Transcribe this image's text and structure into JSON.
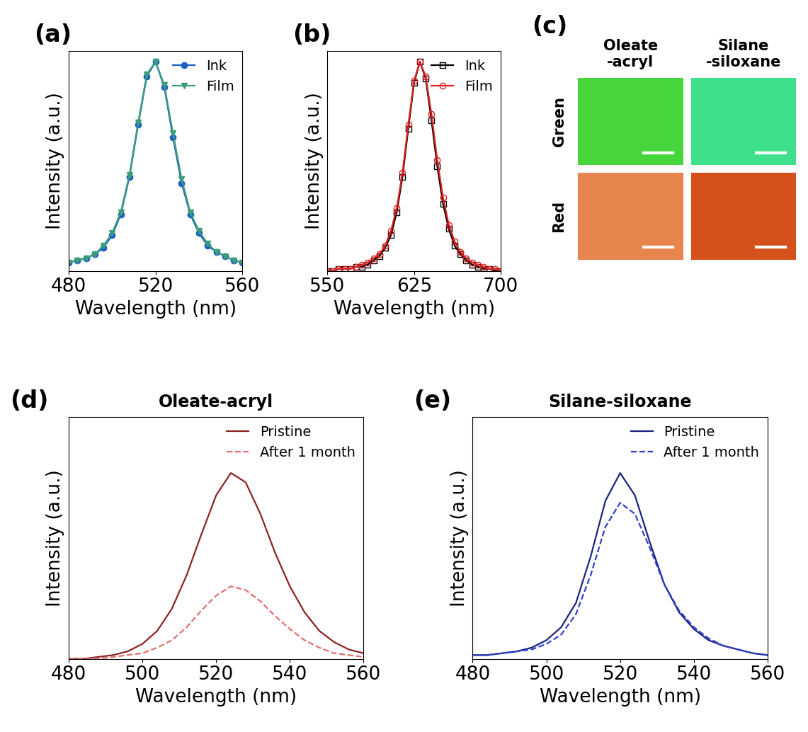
{
  "chart_data": [
    {
      "type": "line",
      "panel": "(a)",
      "x_label": "Wavelength (nm)",
      "y_label": "Intensity (a.u.)",
      "xlim": [
        480,
        560
      ],
      "xticks": [
        480,
        520,
        560
      ],
      "ylim": [
        0,
        1.05
      ],
      "yticks": [],
      "tick_labels": "x",
      "legend": "upper right",
      "x": [
        480,
        484,
        488,
        492,
        496,
        500,
        504,
        508,
        512,
        516,
        520,
        524,
        528,
        532,
        536,
        540,
        544,
        548,
        552,
        556,
        560
      ],
      "series": [
        {
          "name": "Ink",
          "color": "#1f5fc8",
          "marker": "circle",
          "line_style": "solid",
          "values": [
            0.04,
            0.05,
            0.06,
            0.08,
            0.11,
            0.17,
            0.27,
            0.45,
            0.7,
            0.93,
            1.0,
            0.88,
            0.64,
            0.42,
            0.27,
            0.18,
            0.12,
            0.09,
            0.07,
            0.05,
            0.04
          ]
        },
        {
          "name": "Film",
          "color": "#3a9e7a",
          "marker": "triangle_down",
          "line_style": "solid",
          "values": [
            0.04,
            0.05,
            0.06,
            0.08,
            0.12,
            0.18,
            0.28,
            0.46,
            0.71,
            0.94,
            1.0,
            0.89,
            0.66,
            0.44,
            0.28,
            0.19,
            0.13,
            0.09,
            0.07,
            0.05,
            0.04
          ]
        }
      ]
    },
    {
      "type": "line",
      "panel": "(b)",
      "x_label": "Wavelength (nm)",
      "y_label": "Intensity (a.u.)",
      "xlim": [
        550,
        700
      ],
      "xticks": [
        550,
        625,
        700
      ],
      "ylim": [
        0,
        1.05
      ],
      "yticks": [],
      "tick_labels": "x",
      "legend": "upper right",
      "x": [
        550,
        555,
        560,
        565,
        570,
        575,
        580,
        585,
        590,
        595,
        600,
        605,
        610,
        615,
        620,
        625,
        630,
        635,
        640,
        645,
        650,
        655,
        660,
        665,
        670,
        675,
        680,
        685,
        690,
        695,
        700
      ],
      "series": [
        {
          "name": "Ink",
          "color": "#000000",
          "marker": "open_square",
          "line_style": "solid",
          "values": [
            0.0,
            0.0,
            0.01,
            0.01,
            0.01,
            0.02,
            0.02,
            0.03,
            0.05,
            0.07,
            0.11,
            0.17,
            0.28,
            0.45,
            0.68,
            0.9,
            1.0,
            0.92,
            0.72,
            0.5,
            0.32,
            0.2,
            0.12,
            0.08,
            0.05,
            0.03,
            0.02,
            0.01,
            0.01,
            0.0,
            0.0
          ]
        },
        {
          "name": "Film",
          "color": "#e02020",
          "marker": "open_circle",
          "line_style": "solid",
          "values": [
            0.0,
            0.0,
            0.01,
            0.01,
            0.01,
            0.02,
            0.03,
            0.04,
            0.06,
            0.08,
            0.12,
            0.19,
            0.3,
            0.47,
            0.7,
            0.91,
            1.0,
            0.93,
            0.75,
            0.53,
            0.35,
            0.22,
            0.14,
            0.09,
            0.06,
            0.04,
            0.03,
            0.02,
            0.01,
            0.01,
            0.0
          ]
        }
      ]
    },
    {
      "type": "image_grid",
      "panel": "(c)",
      "columns": [
        "Oleate\n-acryl",
        "Silane\n-siloxane"
      ],
      "rows": [
        "Green",
        "Red"
      ],
      "colors": [
        [
          "#46d63c",
          "#3fe08c"
        ],
        [
          "#e8854e",
          "#d4511c"
        ]
      ]
    },
    {
      "type": "line",
      "panel": "(d)",
      "title": "Oleate-acryl",
      "x_label": "Wavelength (nm)",
      "y_label": "Intensity (a.u.)",
      "xlim": [
        480,
        560
      ],
      "xticks": [
        480,
        500,
        520,
        540,
        560
      ],
      "ylim": [
        0,
        1.3
      ],
      "yticks": [],
      "tick_labels": "x",
      "legend": "upper right",
      "x": [
        480,
        484,
        488,
        492,
        496,
        500,
        504,
        508,
        512,
        516,
        520,
        524,
        528,
        532,
        536,
        540,
        544,
        548,
        552,
        556,
        560
      ],
      "series": [
        {
          "name": "Pristine",
          "color": "#8b2323",
          "line_style": "solid",
          "values": [
            0.0,
            0.0,
            0.01,
            0.02,
            0.04,
            0.08,
            0.15,
            0.27,
            0.45,
            0.67,
            0.88,
            1.0,
            0.95,
            0.78,
            0.57,
            0.39,
            0.25,
            0.15,
            0.09,
            0.05,
            0.03
          ]
        },
        {
          "name": "After 1 month",
          "color": "#e07070",
          "line_style": "dashed",
          "values": [
            0.0,
            0.0,
            0.0,
            0.01,
            0.02,
            0.03,
            0.06,
            0.1,
            0.17,
            0.26,
            0.34,
            0.39,
            0.37,
            0.31,
            0.23,
            0.16,
            0.1,
            0.06,
            0.03,
            0.02,
            0.01
          ]
        }
      ]
    },
    {
      "type": "line",
      "panel": "(e)",
      "title": "Silane-siloxane",
      "x_label": "Wavelength (nm)",
      "y_label": "Intensity (a.u.)",
      "xlim": [
        480,
        560
      ],
      "xticks": [
        480,
        500,
        520,
        540,
        560
      ],
      "ylim": [
        0,
        1.3
      ],
      "yticks": [],
      "tick_labels": "x",
      "legend": "upper right",
      "x": [
        480,
        484,
        488,
        492,
        496,
        500,
        504,
        508,
        512,
        516,
        520,
        524,
        528,
        532,
        536,
        540,
        544,
        548,
        552,
        556,
        560
      ],
      "series": [
        {
          "name": "Pristine",
          "color": "#1a237e",
          "line_style": "solid",
          "values": [
            0.02,
            0.02,
            0.03,
            0.04,
            0.06,
            0.1,
            0.17,
            0.3,
            0.55,
            0.85,
            1.0,
            0.88,
            0.63,
            0.4,
            0.25,
            0.16,
            0.1,
            0.07,
            0.05,
            0.03,
            0.02
          ]
        },
        {
          "name": "After 1 month",
          "color": "#3040d0",
          "line_style": "dashed",
          "values": [
            0.02,
            0.02,
            0.03,
            0.04,
            0.05,
            0.08,
            0.13,
            0.24,
            0.45,
            0.71,
            0.84,
            0.78,
            0.6,
            0.4,
            0.26,
            0.17,
            0.11,
            0.07,
            0.05,
            0.03,
            0.02
          ]
        }
      ]
    }
  ]
}
